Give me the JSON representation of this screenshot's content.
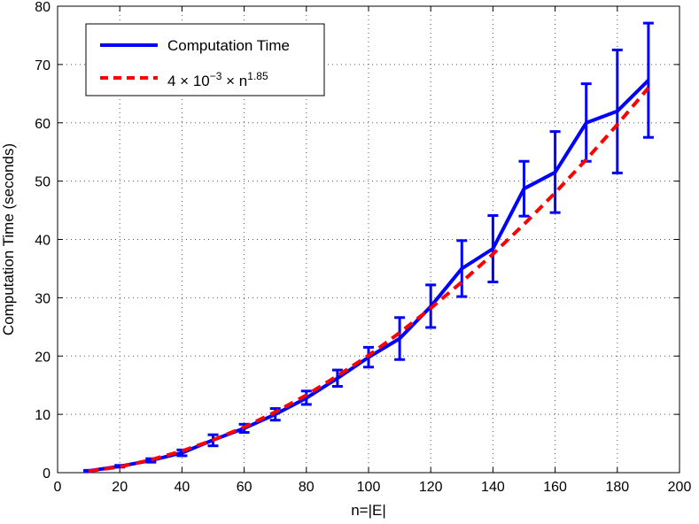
{
  "chart_data": {
    "type": "line",
    "title": "",
    "xlabel": "n=|E|",
    "ylabel": "Computation Time (seconds)",
    "xlim": [
      0,
      200
    ],
    "ylim": [
      0,
      80
    ],
    "xticks": [
      "0",
      "20",
      "40",
      "60",
      "80",
      "100",
      "120",
      "140",
      "160",
      "180",
      "200"
    ],
    "yticks": [
      "0",
      "10",
      "20",
      "30",
      "40",
      "50",
      "60",
      "70",
      "80"
    ],
    "grid": true,
    "legend_position": "top-left",
    "series": [
      {
        "name": "Computation Time",
        "style": "solid",
        "color": "#0000ff",
        "x": [
          10,
          20,
          30,
          40,
          50,
          60,
          70,
          80,
          90,
          100,
          110,
          120,
          130,
          140,
          150,
          160,
          170,
          180,
          190
        ],
        "y": [
          0.3,
          1.1,
          2.1,
          3.4,
          5.6,
          7.6,
          10.0,
          12.8,
          16.2,
          19.8,
          23.0,
          28.5,
          35.0,
          38.4,
          48.7,
          51.5,
          60.0,
          62.0,
          67.3
        ],
        "error_low": [
          0.2,
          0.95,
          1.8,
          2.9,
          4.6,
          6.9,
          9.0,
          11.7,
          14.8,
          18.1,
          19.4,
          24.9,
          30.2,
          32.7,
          44.0,
          44.6,
          53.4,
          51.4,
          57.5
        ],
        "error_high": [
          0.4,
          1.25,
          2.4,
          3.9,
          6.5,
          8.3,
          11.0,
          14.0,
          17.6,
          21.5,
          26.6,
          32.2,
          39.8,
          44.1,
          53.4,
          58.5,
          66.7,
          72.5,
          77.1
        ]
      },
      {
        "name": "4 × 10⁻³ × n¹·⁸⁵",
        "style": "dashed",
        "color": "#ff0000",
        "x": [
          10,
          20,
          30,
          40,
          50,
          60,
          70,
          80,
          90,
          100,
          110,
          120,
          130,
          140,
          150,
          160,
          170,
          180,
          190
        ],
        "y": [
          0.28,
          1.0,
          2.2,
          3.7,
          5.6,
          7.8,
          10.4,
          13.3,
          16.6,
          20.1,
          24.0,
          28.2,
          32.7,
          37.5,
          42.6,
          48.0,
          53.7,
          59.7,
          66.0
        ]
      }
    ],
    "legend": {
      "entries": [
        {
          "label": "Computation Time",
          "style": "solid",
          "color": "#0000ff"
        },
        {
          "label_base": "4 × 10",
          "label_exp1": "−3",
          "label_mid": " × n",
          "label_exp2": "1.85",
          "style": "dashed",
          "color": "#ff0000"
        }
      ]
    }
  }
}
